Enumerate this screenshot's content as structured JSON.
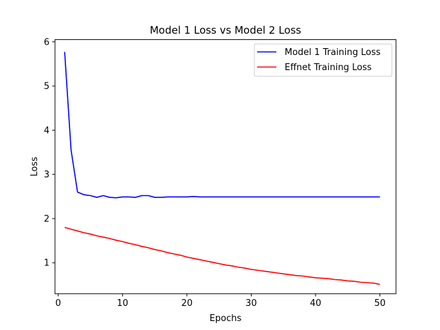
{
  "chart_data": {
    "type": "line",
    "title": "Model 1 Loss vs Model 2 Loss",
    "xlabel": "Epochs",
    "ylabel": "Loss",
    "xlim": [
      -0.5,
      52.5
    ],
    "ylim": [
      0.3,
      6.05
    ],
    "xticks": [
      0,
      10,
      20,
      30,
      40,
      50
    ],
    "yticks": [
      1,
      2,
      3,
      4,
      5,
      6
    ],
    "grid": false,
    "legend": "top-right",
    "series": [
      {
        "name": "Model 1 Training Loss",
        "color": "#0000ff",
        "x": [
          1,
          2,
          3,
          4,
          5,
          6,
          7,
          8,
          9,
          10,
          11,
          12,
          13,
          14,
          15,
          16,
          17,
          18,
          19,
          20,
          21,
          22,
          23,
          24,
          25,
          26,
          27,
          28,
          29,
          30,
          31,
          32,
          33,
          34,
          35,
          36,
          37,
          38,
          39,
          40,
          41,
          42,
          43,
          44,
          45,
          46,
          47,
          48,
          49,
          50
        ],
        "values": [
          5.77,
          3.55,
          2.6,
          2.54,
          2.52,
          2.48,
          2.52,
          2.48,
          2.47,
          2.49,
          2.49,
          2.48,
          2.52,
          2.52,
          2.48,
          2.48,
          2.49,
          2.49,
          2.49,
          2.49,
          2.5,
          2.49,
          2.49,
          2.49,
          2.49,
          2.49,
          2.49,
          2.49,
          2.49,
          2.49,
          2.49,
          2.49,
          2.49,
          2.49,
          2.49,
          2.49,
          2.49,
          2.49,
          2.49,
          2.49,
          2.49,
          2.49,
          2.49,
          2.49,
          2.49,
          2.49,
          2.49,
          2.49,
          2.49,
          2.49
        ]
      },
      {
        "name": "Effnet Training Loss",
        "color": "#ff0000",
        "x": [
          1,
          2,
          3,
          4,
          5,
          6,
          7,
          8,
          9,
          10,
          11,
          12,
          13,
          14,
          15,
          16,
          17,
          18,
          19,
          20,
          21,
          22,
          23,
          24,
          25,
          26,
          27,
          28,
          29,
          30,
          31,
          32,
          33,
          34,
          35,
          36,
          37,
          38,
          39,
          40,
          41,
          42,
          43,
          44,
          45,
          46,
          47,
          48,
          49,
          50
        ],
        "values": [
          1.8,
          1.76,
          1.72,
          1.68,
          1.65,
          1.61,
          1.58,
          1.55,
          1.51,
          1.48,
          1.44,
          1.41,
          1.37,
          1.34,
          1.3,
          1.27,
          1.23,
          1.2,
          1.17,
          1.13,
          1.1,
          1.07,
          1.04,
          1.01,
          0.98,
          0.95,
          0.93,
          0.9,
          0.88,
          0.85,
          0.83,
          0.81,
          0.79,
          0.77,
          0.75,
          0.73,
          0.71,
          0.7,
          0.68,
          0.66,
          0.65,
          0.64,
          0.62,
          0.61,
          0.59,
          0.58,
          0.56,
          0.55,
          0.54,
          0.51
        ]
      }
    ]
  }
}
